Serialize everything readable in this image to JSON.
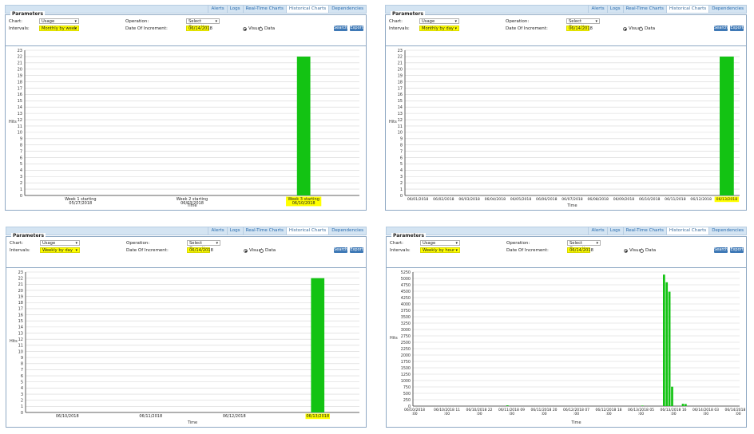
{
  "tabs": [
    "Alerts",
    "Logs",
    "Real-Time Charts",
    "Historical Charts",
    "Dependencies"
  ],
  "active_tab": "Historical Charts",
  "params": {
    "legend": "Parameters",
    "chart_label": "Chart:",
    "chart_value": "Usage",
    "intervals_label": "Intervals:",
    "operation_label": "Operation:",
    "operation_value": "Select Operation",
    "date_label": "Date Of Increment:",
    "date_value": "06/14/2018",
    "visual_label": "Visual",
    "data_label": "Data",
    "search_label": "Search",
    "export_label": "Export"
  },
  "y_axis_label": "Hits",
  "x_axis_label": "Time",
  "colors": {
    "bar": "#13c313",
    "highlight": "#ffff00",
    "tab_bg": "#d4e4f2",
    "button": "#3f79b6"
  },
  "panels": [
    {
      "interval": "Monthly by week",
      "chart_data": {
        "type": "bar",
        "categories": [
          "Week 1 starting\n05/27/2018",
          "Week 2 starting\n06/03/2018",
          "Week 3 starting\n06/10/2018"
        ],
        "highlighted_category": 2,
        "values": [
          0,
          0,
          22
        ],
        "ylim": [
          0,
          23
        ],
        "yticks": [
          0,
          1,
          2,
          3,
          4,
          5,
          6,
          7,
          8,
          9,
          10,
          11,
          12,
          13,
          14,
          15,
          16,
          17,
          18,
          19,
          20,
          21,
          22,
          23
        ],
        "xlabel": "Time",
        "ylabel": "Hits",
        "grid": true
      }
    },
    {
      "interval": "Monthly by day",
      "chart_data": {
        "type": "bar",
        "categories": [
          "06/01/2018",
          "06/02/2018",
          "06/03/2018",
          "06/04/2018",
          "06/05/2018",
          "06/06/2018",
          "06/07/2018",
          "06/08/2018",
          "06/09/2018",
          "06/10/2018",
          "06/11/2018",
          "06/12/2018",
          "06/13/2018"
        ],
        "highlighted_category": 12,
        "values": [
          0,
          0,
          0,
          0,
          0,
          0,
          0,
          0,
          0,
          0,
          0,
          0,
          22
        ],
        "ylim": [
          0,
          23
        ],
        "yticks": [
          0,
          1,
          2,
          3,
          4,
          5,
          6,
          7,
          8,
          9,
          10,
          11,
          12,
          13,
          14,
          15,
          16,
          17,
          18,
          19,
          20,
          21,
          22,
          23
        ],
        "xlabel": "Time",
        "ylabel": "Hits",
        "grid": true
      }
    },
    {
      "interval": "Weekly by day",
      "chart_data": {
        "type": "bar",
        "categories": [
          "06/10/2018",
          "06/11/2018",
          "06/12/2018",
          "06/13/2018"
        ],
        "highlighted_category": 3,
        "values": [
          0,
          0,
          0,
          22
        ],
        "ylim": [
          0,
          23
        ],
        "yticks": [
          0,
          1,
          2,
          3,
          4,
          5,
          6,
          7,
          8,
          9,
          10,
          11,
          12,
          13,
          14,
          15,
          16,
          17,
          18,
          19,
          20,
          21,
          22,
          23
        ],
        "xlabel": "Time",
        "ylabel": "Hits",
        "grid": true
      }
    },
    {
      "interval": "Weekly by hour",
      "chart_data": {
        "type": "bar",
        "x_tick_labels": [
          "06/10/2018\n:00",
          "06/10/2018 11\n:00",
          "06/10/2018 22\n:00",
          "06/11/2018 09\n:00",
          "06/11/2018 20\n:00",
          "06/12/2018 07\n:00",
          "06/12/2018 18\n:00",
          "06/13/2018 05\n:00",
          "06/13/2018 16\n:00",
          "06/14/2018 03\n:00",
          "06/14/2018 14\n:00"
        ],
        "bars": [
          {
            "hour": 35,
            "value": 30
          },
          {
            "hour": 85,
            "value": 20
          },
          {
            "hour": 93,
            "value": 5150
          },
          {
            "hour": 94,
            "value": 4850
          },
          {
            "hour": 95,
            "value": 4480
          },
          {
            "hour": 96,
            "value": 760
          },
          {
            "hour": 100,
            "value": 90
          },
          {
            "hour": 101,
            "value": 80
          }
        ],
        "x_span_hours": 121,
        "ylim": [
          0,
          5250
        ],
        "yticks": [
          0,
          250,
          500,
          750,
          1000,
          1250,
          1500,
          1750,
          2000,
          2250,
          2500,
          2750,
          3000,
          3250,
          3500,
          3750,
          4000,
          4250,
          4500,
          4750,
          5000,
          5250
        ],
        "xlabel": "Time",
        "ylabel": "Hits",
        "grid": true
      }
    }
  ]
}
